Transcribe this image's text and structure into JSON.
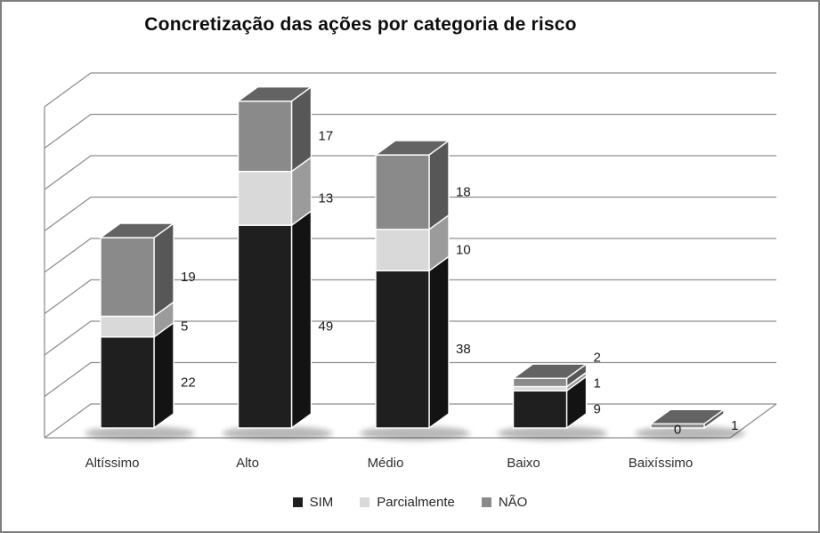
{
  "chart_data": {
    "type": "bar",
    "subtype": "3d-stacked-column",
    "title": "Concretização das ações por categoria de risco",
    "categories": [
      "Altíssimo",
      "Alto",
      "Médio",
      "Baixo",
      "Baixíssimo"
    ],
    "series": [
      {
        "name": "SIM",
        "values": [
          22,
          49,
          38,
          9,
          0
        ],
        "data_labels": [
          "22",
          "49",
          "38",
          "9",
          "0"
        ],
        "color": "#1f1f1f",
        "color_side": "#131313",
        "color_top": "#3a3a3a"
      },
      {
        "name": "Parcialmente",
        "values": [
          5,
          13,
          10,
          1,
          0
        ],
        "data_labels": [
          "5",
          "13",
          "10",
          "1",
          ""
        ],
        "color": "#d9d9d9",
        "color_side": "#9b9b9b",
        "color_top": "#c4c4c4"
      },
      {
        "name": "NÃO",
        "values": [
          19,
          17,
          18,
          2,
          1
        ],
        "data_labels": [
          "19",
          "17",
          "18",
          "2",
          "1"
        ],
        "color": "#8a8a8a",
        "color_side": "#575757",
        "color_top": "#636363"
      }
    ],
    "ylim": [
      0,
      80
    ],
    "gridline_step": 10,
    "grid": true,
    "legend_position": "bottom",
    "colors": {
      "gridline": "#8e8e8e",
      "data_label": "#1a1a1a",
      "bar_edge": "#ffffff"
    }
  }
}
